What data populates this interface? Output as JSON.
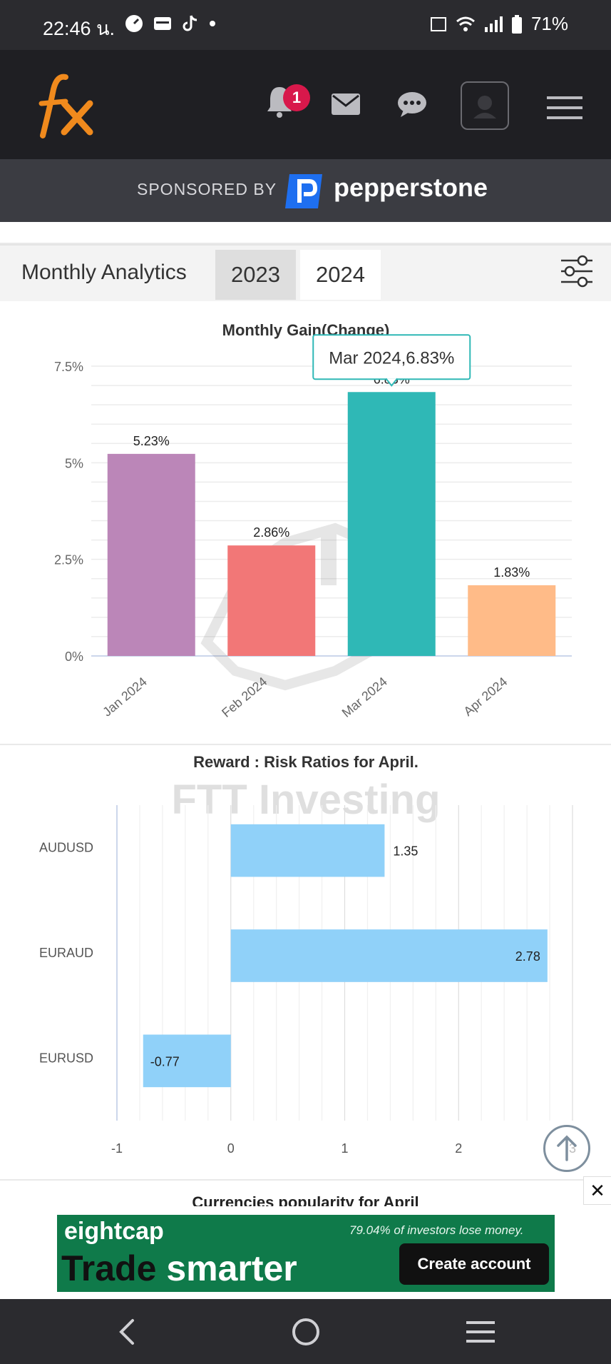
{
  "status_bar": {
    "time": "22:46 น.",
    "battery": "71%"
  },
  "header": {
    "logo_text": "fx",
    "notification_count": "1"
  },
  "sponsor": {
    "label": "SPONSORED BY",
    "brand": "pepperstone"
  },
  "tabs": {
    "title": "Monthly Analytics",
    "items": [
      {
        "label": "2023"
      },
      {
        "label": "2024"
      }
    ],
    "active": "2024"
  },
  "chart_data": [
    {
      "type": "bar",
      "title": "Monthly Gain(Change)",
      "categories": [
        "Jan 2024",
        "Feb 2024",
        "Mar 2024",
        "Apr 2024"
      ],
      "values": [
        5.23,
        2.86,
        6.83,
        1.83
      ],
      "value_labels": [
        "5.23%",
        "2.86%",
        "6.83%",
        "1.83%"
      ],
      "colors": [
        "#bb86b8",
        "#f27777",
        "#2fb8b6",
        "#ffbb88"
      ],
      "y_ticks": [
        "0%",
        "2.5%",
        "5%",
        "7.5%"
      ],
      "ylim": [
        0,
        7.5
      ],
      "tooltip": "Mar 2024,6.83%",
      "grid": true
    },
    {
      "type": "bar",
      "orientation": "horizontal",
      "title": "Reward : Risk Ratios for April.",
      "categories": [
        "AUDUSD",
        "EURAUD",
        "EURUSD"
      ],
      "values": [
        1.35,
        2.78,
        -0.77
      ],
      "value_labels": [
        "1.35",
        "2.78",
        "-0.77"
      ],
      "color": "#90d1f9",
      "x_ticks": [
        "-1",
        "0",
        "1",
        "2",
        "3"
      ],
      "xlim": [
        -1,
        3
      ],
      "grid": true
    }
  ],
  "watermark": {
    "text": "FTT Investing"
  },
  "next_section": {
    "title": "Currencies popularity for April"
  },
  "ad": {
    "brand": "eightcap",
    "slogan_part1": "Trade",
    "slogan_part2": "smarter",
    "disclaimer": "79.04% of investors lose money.",
    "cta": "Create account"
  }
}
